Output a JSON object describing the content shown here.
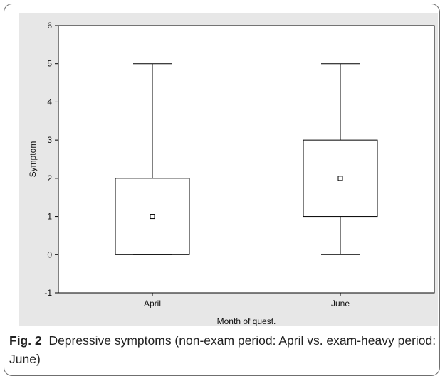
{
  "caption": {
    "label": "Fig. 2",
    "text": "Depressive symptoms (non-exam period: April vs. exam-heavy period: June)"
  },
  "chart_data": {
    "type": "box",
    "xlabel": "Month of quest.",
    "ylabel": "Symptom",
    "ylim": [
      -1,
      6
    ],
    "yticks": [
      -1,
      0,
      1,
      2,
      3,
      4,
      5,
      6
    ],
    "grid": false,
    "categories": [
      "April",
      "June"
    ],
    "boxes": [
      {
        "category": "April",
        "whisker_low": 0,
        "q1": 0,
        "median": 1,
        "q3": 2,
        "whisker_high": 5
      },
      {
        "category": "June",
        "whisker_low": 0,
        "q1": 1,
        "median": 2,
        "q3": 3,
        "whisker_high": 5
      }
    ],
    "colors": {
      "frame": "#000000",
      "plot_background": "#ffffff",
      "outer_background": "#e7e7e7"
    }
  }
}
